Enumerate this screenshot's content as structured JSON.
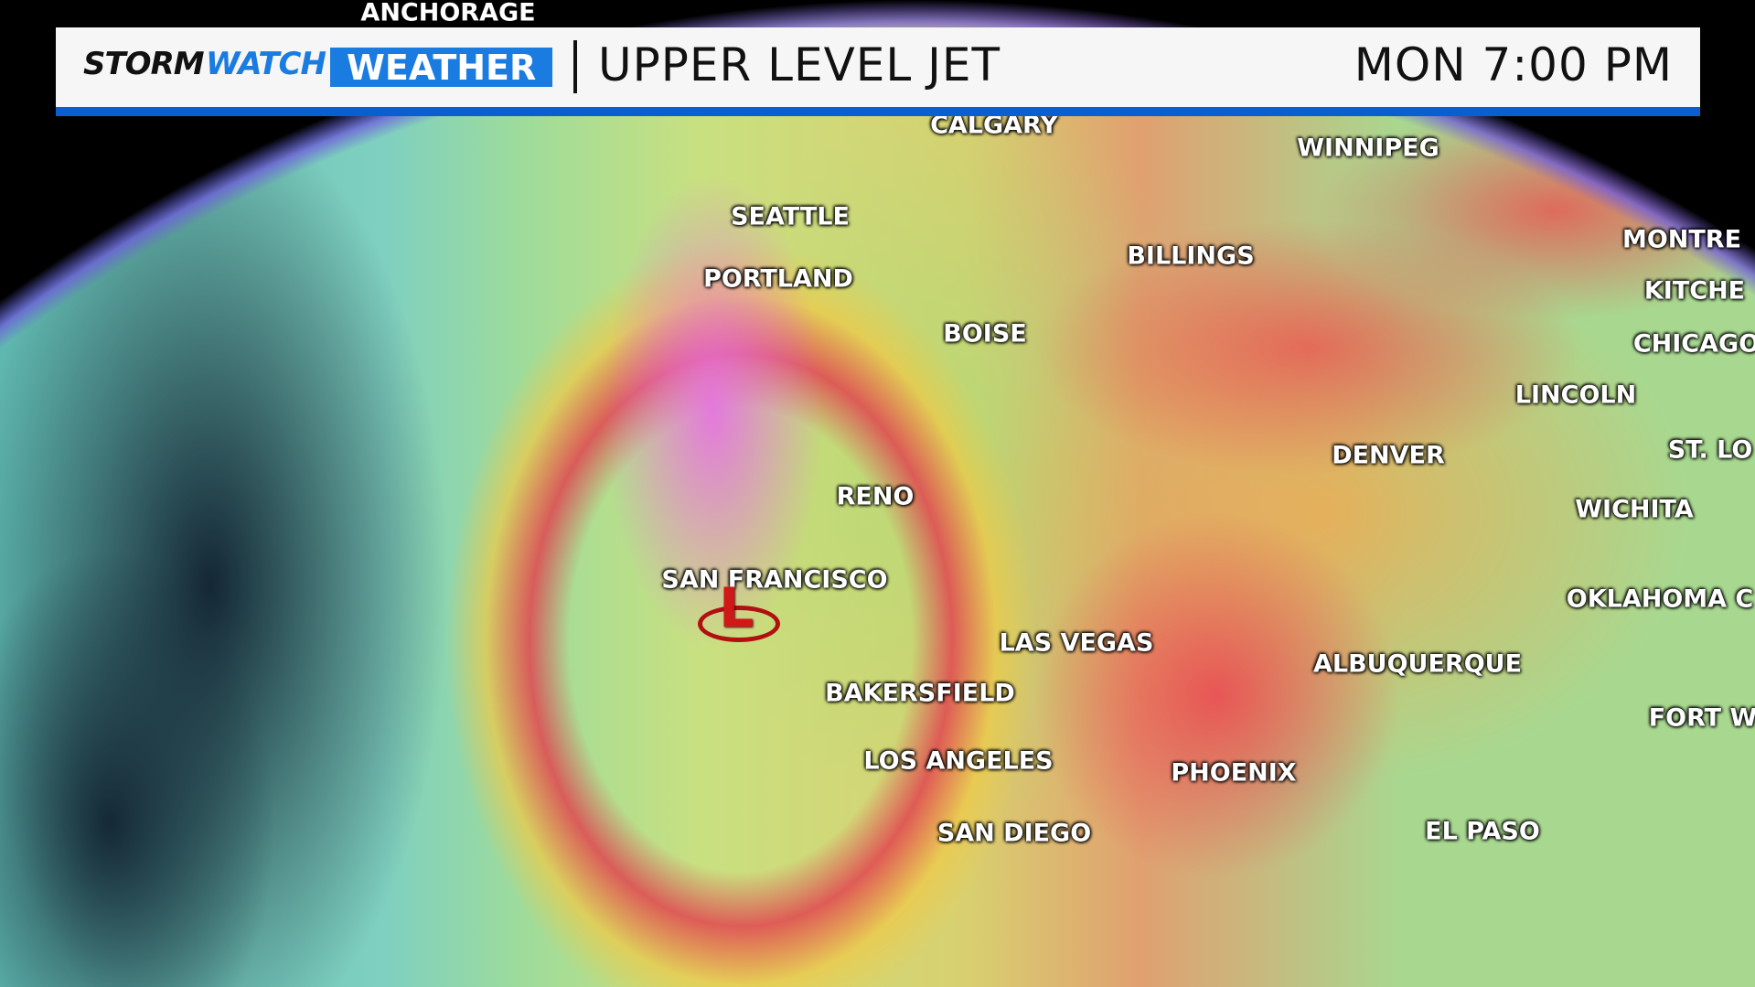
{
  "header": {
    "brand_storm": "STORM",
    "brand_watch": "WATCH",
    "brand_weather": "WEATHER",
    "title": "UPPER LEVEL JET",
    "time": "MON 7:00 PM"
  },
  "colors": {
    "brand_blue": "#1a7be0",
    "bar_blue": "#0a5fd0",
    "low_marker": "#d01818"
  },
  "map": {
    "low_marker": {
      "label": "L",
      "icon": "low-pressure-icon"
    },
    "cities": [
      {
        "name": "ANCHORAGE"
      },
      {
        "name": "CALGARY"
      },
      {
        "name": "WINNIPEG"
      },
      {
        "name": "SEATTLE"
      },
      {
        "name": "PORTLAND"
      },
      {
        "name": "BILLINGS"
      },
      {
        "name": "BOISE"
      },
      {
        "name": "MONTRE"
      },
      {
        "name": "KITCHE"
      },
      {
        "name": "CHICAGO"
      },
      {
        "name": "LINCOLN"
      },
      {
        "name": "DENVER"
      },
      {
        "name": "ST. LO"
      },
      {
        "name": "RENO"
      },
      {
        "name": "WICHITA"
      },
      {
        "name": "SAN FRANCISCO"
      },
      {
        "name": "OKLAHOMA C"
      },
      {
        "name": "LAS VEGAS"
      },
      {
        "name": "ALBUQUERQUE"
      },
      {
        "name": "BAKERSFIELD"
      },
      {
        "name": "FORT W"
      },
      {
        "name": "LOS ANGELES"
      },
      {
        "name": "PHOENIX"
      },
      {
        "name": "SAN DIEGO"
      },
      {
        "name": "EL PASO"
      }
    ]
  }
}
